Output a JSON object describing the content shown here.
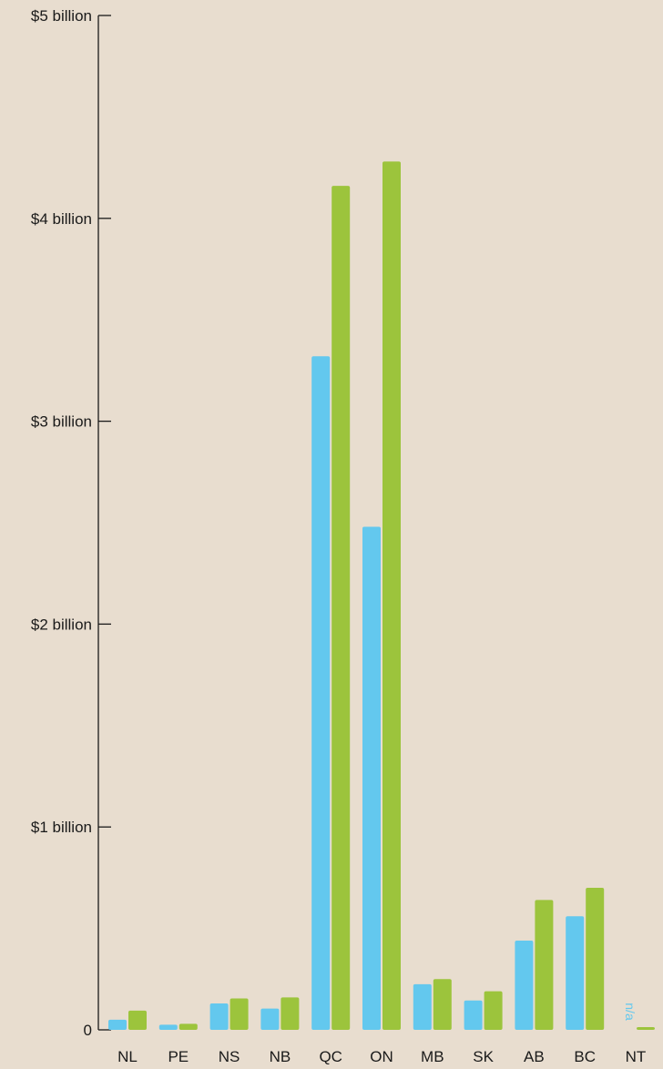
{
  "colors": {
    "background": "#e8ddcf",
    "axis": "#1a1a1a",
    "series_1": "#63c8ee",
    "series_2": "#9cc43c"
  },
  "chart_data": {
    "type": "bar",
    "categories": [
      "NL",
      "PE",
      "NS",
      "NB",
      "QC",
      "ON",
      "MB",
      "SK",
      "AB",
      "BC",
      "NT"
    ],
    "series": [
      {
        "values": [
          0.05,
          0.025,
          0.13,
          0.105,
          3.32,
          2.48,
          0.225,
          0.145,
          0.44,
          0.56,
          null
        ]
      },
      {
        "values": [
          0.095,
          0.03,
          0.155,
          0.16,
          4.16,
          4.28,
          0.25,
          0.19,
          0.64,
          0.7,
          0.01
        ]
      }
    ],
    "missing_label": "n/a",
    "ylim": [
      0,
      5
    ],
    "yticks": [
      {
        "value": 0,
        "label": "0"
      },
      {
        "value": 1,
        "label": "$1 billion"
      },
      {
        "value": 2,
        "label": "$2 billion"
      },
      {
        "value": 3,
        "label": "$3 billion"
      },
      {
        "value": 4,
        "label": "$4 billion"
      },
      {
        "value": 5,
        "label": "$5 billion"
      }
    ],
    "grid": false,
    "legend": "none"
  }
}
